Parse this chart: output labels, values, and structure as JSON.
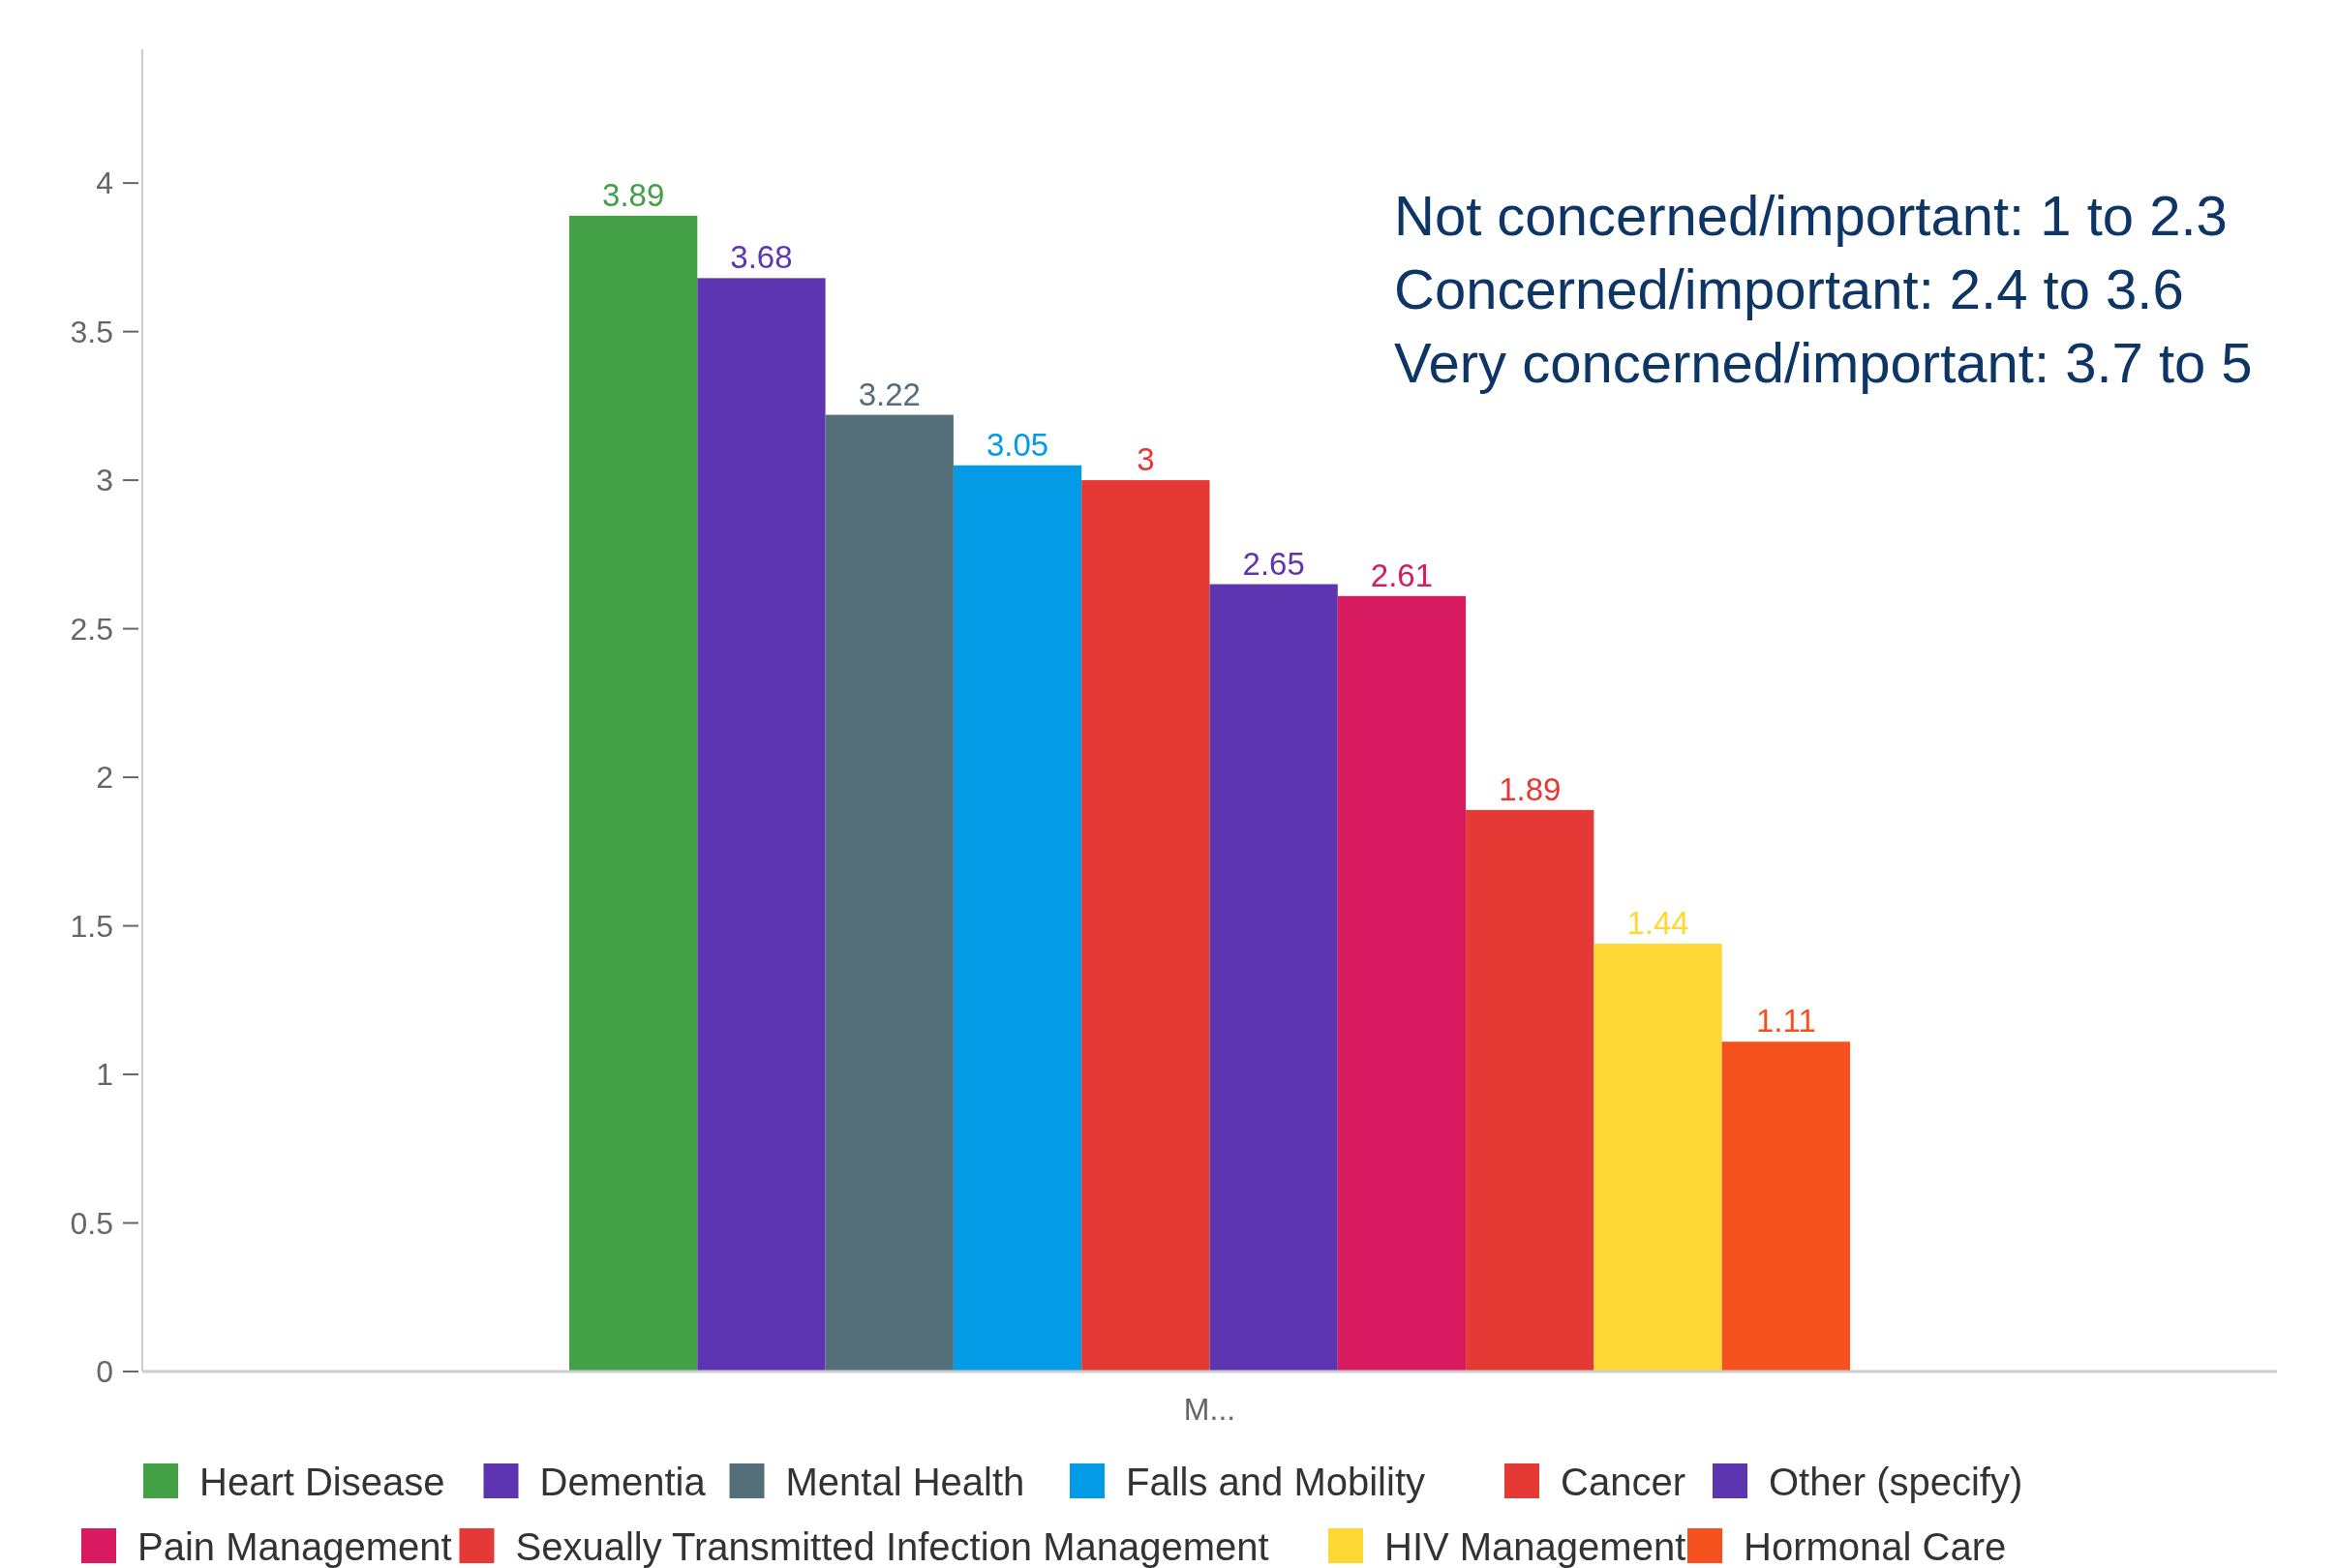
{
  "chart_data": {
    "type": "bar",
    "categories": [
      "M..."
    ],
    "series": [
      {
        "name": "Heart Disease",
        "color": "#43a047",
        "values": [
          3.89
        ]
      },
      {
        "name": "Dementia",
        "color": "#5e35b1",
        "values": [
          3.68
        ]
      },
      {
        "name": "Mental Health",
        "color": "#546e7a",
        "values": [
          3.22
        ]
      },
      {
        "name": "Falls and Mobility",
        "color": "#039be5",
        "values": [
          3.05
        ]
      },
      {
        "name": "Cancer",
        "color": "#e53935",
        "values": [
          3
        ]
      },
      {
        "name": "Other (specify)",
        "color": "#5e35b1",
        "values": [
          2.65
        ]
      },
      {
        "name": "Pain Management",
        "color": "#d81b60",
        "values": [
          2.61
        ]
      },
      {
        "name": "Sexually Transmitted Infection Management",
        "color": "#e53935",
        "values": [
          1.89
        ]
      },
      {
        "name": "HIV Management",
        "color": "#fdd835",
        "values": [
          1.44
        ]
      },
      {
        "name": "Hormonal Care",
        "color": "#f4511e",
        "values": [
          1.11
        ]
      }
    ],
    "ylim": [
      0,
      4.45
    ],
    "yticks": [
      0,
      0.5,
      1,
      1.5,
      2,
      2.5,
      3,
      3.5,
      4
    ],
    "data_labels": true,
    "grid": false,
    "legend": "bottom",
    "annotations": [
      "Not concerned/important: 1 to 2.3",
      "Concerned/important: 2.4 to 3.6",
      "Very concerned/important: 3.7 to 5"
    ]
  }
}
